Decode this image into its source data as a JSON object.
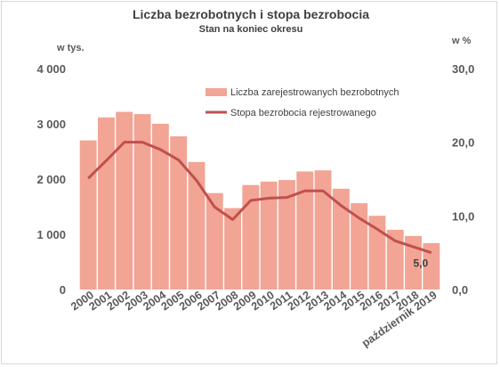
{
  "chart_data": {
    "type": "bar",
    "title": "Liczba bezrobotnych i stopa bezrobocia",
    "subtitle": "Stan na koniec okresu",
    "y_left_unit": "w tys.",
    "y_right_unit": "w %",
    "categories": [
      "2000",
      "2001",
      "2002",
      "2003",
      "2004",
      "2005",
      "2006",
      "2007",
      "2008",
      "2009",
      "2010",
      "2011",
      "2012",
      "2013",
      "2014",
      "2015",
      "2016",
      "2017",
      "2018",
      "październik 2019"
    ],
    "y_left_ticks": [
      "0",
      "1 000",
      "2 000",
      "3 000",
      "4 000"
    ],
    "y_right_ticks": [
      "0,0",
      "10,0",
      "20,0",
      "30,0"
    ],
    "ylim_left": [
      0,
      4000
    ],
    "ylim_right": [
      0,
      30
    ],
    "grid": false,
    "legend_position": "top-right",
    "series": [
      {
        "name": "Liczba zarejestrowanych bezrobotnych",
        "type": "bar",
        "axis": "left",
        "color": "#f2a495",
        "values": [
          2700,
          3116,
          3217,
          3176,
          3000,
          2773,
          2309,
          1746,
          1474,
          1892,
          1954,
          1982,
          2137,
          2158,
          1825,
          1563,
          1335,
          1082,
          969,
          839
        ]
      },
      {
        "name": "Stopa bezrobocia rejestrowanego",
        "type": "line",
        "axis": "right",
        "color": "#c0504d",
        "values": [
          15.1,
          17.5,
          20.0,
          20.0,
          19.0,
          17.6,
          14.8,
          11.2,
          9.5,
          12.1,
          12.4,
          12.5,
          13.4,
          13.4,
          11.4,
          9.7,
          8.2,
          6.6,
          5.8,
          5.0
        ]
      }
    ],
    "data_labels": [
      {
        "series": 1,
        "index": 19,
        "text": "5,0"
      }
    ]
  }
}
